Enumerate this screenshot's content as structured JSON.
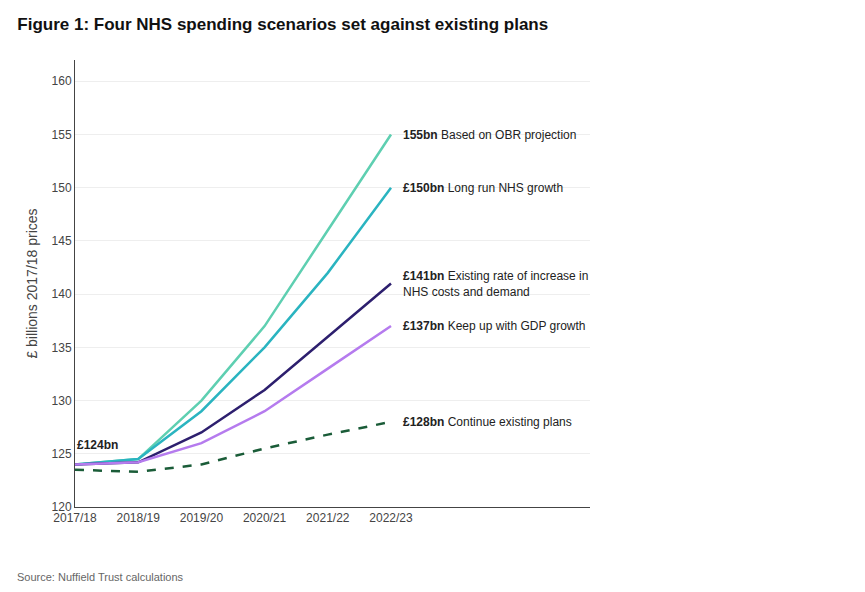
{
  "chart_data": {
    "type": "line",
    "title": "Figure 1: Four NHS spending scenarios set against existing plans",
    "y_label": "£ billions 2017/18 prices",
    "source": "Source: Nuffield Trust calculations",
    "annotations": [
      "£124bn"
    ],
    "categories": [
      "2017/18",
      "2018/19",
      "2019/20",
      "2020/21",
      "2021/22",
      "2022/23"
    ],
    "series": [
      {
        "name": "155bn Based on OBR projection",
        "color": "#5ecfb1",
        "line_style": "solid",
        "values": [
          124,
          124.5,
          130,
          137,
          146,
          155
        ]
      },
      {
        "name": "£150bn Long run NHS growth",
        "color": "#2ab4c0",
        "line_style": "solid",
        "values": [
          124,
          124.5,
          129,
          135,
          142,
          150
        ]
      },
      {
        "name": "£141bn Existing rate of increase in\nNHS costs and demand",
        "color": "#2d1f6e",
        "line_style": "solid",
        "values": [
          124,
          124.2,
          127,
          131,
          136,
          141
        ]
      },
      {
        "name": "£137bn Keep up with GDP growth",
        "color": "#b57bee",
        "line_style": "solid",
        "values": [
          124,
          124.2,
          126,
          129,
          133,
          137
        ]
      },
      {
        "name": "£128bn Continue existing plans",
        "color": "#1a5c38",
        "line_style": "dashed",
        "values": [
          123.5,
          123.3,
          124.0,
          125.5,
          126.8,
          128
        ]
      }
    ],
    "ylim": [
      120,
      162
    ],
    "yticks": [
      120,
      125,
      130,
      135,
      140,
      145,
      150,
      155,
      160
    ],
    "grid": "y"
  }
}
